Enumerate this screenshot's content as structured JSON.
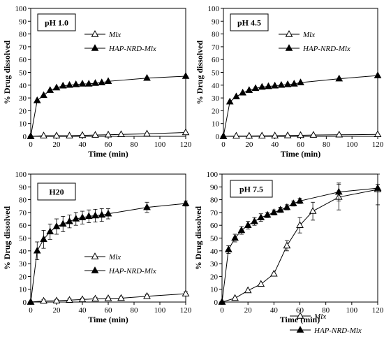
{
  "chart_data": [
    {
      "type": "line",
      "title": "pH 1.0",
      "xlabel": "Time (min)",
      "ylabel": "% Drug dissolved",
      "xlim": [
        0,
        120
      ],
      "ylim": [
        0,
        100
      ],
      "xticks": [
        "0",
        "20",
        "40",
        "60",
        "80",
        "100",
        "120"
      ],
      "yticks": [
        "0",
        "10",
        "20",
        "30",
        "40",
        "50",
        "60",
        "70",
        "80",
        "90",
        "100"
      ],
      "legend_position": "top-right",
      "series": [
        {
          "name": "Mlx",
          "marker": "open-triangle",
          "x": [
            0,
            10,
            20,
            30,
            40,
            50,
            60,
            70,
            90,
            120
          ],
          "y": [
            0,
            0.5,
            0.5,
            0.5,
            0.8,
            1,
            1.2,
            1.5,
            2,
            3
          ],
          "err": [
            0,
            0,
            0,
            0,
            0,
            0,
            0,
            0,
            0,
            0
          ]
        },
        {
          "name": "HAP-NRD-Mlx",
          "marker": "filled-triangle",
          "x": [
            0,
            5,
            10,
            15,
            20,
            25,
            30,
            35,
            40,
            45,
            50,
            55,
            60,
            90,
            120
          ],
          "y": [
            0,
            28,
            32,
            36,
            38,
            39.5,
            40,
            40.5,
            41,
            41,
            41.5,
            42,
            43,
            45.5,
            47
          ],
          "err": [
            0,
            0,
            0,
            0,
            0,
            0,
            0,
            0,
            0,
            0,
            0,
            0,
            0,
            0,
            0
          ]
        }
      ]
    },
    {
      "type": "line",
      "title": "pH 4.5",
      "xlabel": "Time (min)",
      "ylabel": "% Drug dissolved",
      "xlim": [
        0,
        120
      ],
      "ylim": [
        0,
        100
      ],
      "xticks": [
        "0",
        "20",
        "40",
        "60",
        "80",
        "100",
        "120"
      ],
      "yticks": [
        "0",
        "10",
        "20",
        "30",
        "40",
        "50",
        "60",
        "70",
        "80",
        "90",
        "100"
      ],
      "legend_position": "top-right",
      "series": [
        {
          "name": "Mlx",
          "marker": "open-triangle",
          "x": [
            0,
            10,
            20,
            30,
            40,
            50,
            60,
            70,
            90,
            120
          ],
          "y": [
            0,
            0.3,
            0.3,
            0.4,
            0.5,
            0.6,
            0.8,
            1,
            1.2,
            1.5
          ],
          "err": [
            0,
            0,
            0,
            0,
            0,
            0,
            0,
            0,
            0,
            0
          ]
        },
        {
          "name": "HAP-NRD-Mlx",
          "marker": "filled-triangle",
          "x": [
            0,
            5,
            10,
            15,
            20,
            25,
            30,
            35,
            40,
            45,
            50,
            55,
            60,
            90,
            120
          ],
          "y": [
            0,
            27,
            31,
            34,
            36,
            37.5,
            38.5,
            39,
            39.5,
            40,
            40.5,
            41,
            42,
            45,
            47.5
          ],
          "err": [
            0,
            0,
            0,
            0,
            0,
            0,
            0,
            0,
            0,
            0,
            0,
            0,
            0,
            0,
            0
          ]
        }
      ]
    },
    {
      "type": "line",
      "title": "H20",
      "xlabel": "Time (min)",
      "ylabel": "% Drug dissolved",
      "xlim": [
        0,
        120
      ],
      "ylim": [
        0,
        100
      ],
      "xticks": [
        "0",
        "20",
        "40",
        "60",
        "80",
        "100",
        "120"
      ],
      "yticks": [
        "0",
        "10",
        "20",
        "30",
        "40",
        "50",
        "60",
        "70",
        "80",
        "90",
        "100"
      ],
      "legend_position": "bottom-right",
      "series": [
        {
          "name": "Mlx",
          "marker": "open-triangle",
          "x": [
            0,
            10,
            20,
            30,
            40,
            50,
            60,
            70,
            90,
            120
          ],
          "y": [
            0,
            0.8,
            1,
            1.5,
            2,
            2.5,
            2.8,
            3,
            4.5,
            6.5
          ],
          "err": [
            0,
            1,
            1,
            1,
            1,
            1,
            1,
            1,
            1.5,
            1.5
          ]
        },
        {
          "name": "HAP-NRD-Mlx",
          "marker": "filled-triangle",
          "x": [
            0,
            5,
            10,
            15,
            20,
            25,
            30,
            35,
            40,
            45,
            50,
            55,
            60,
            90,
            120
          ],
          "y": [
            0,
            40,
            49,
            55,
            59,
            61,
            63,
            65,
            66,
            67,
            67.5,
            68,
            69,
            74,
            77
          ],
          "err": [
            0,
            7,
            7,
            6,
            6,
            6,
            5,
            5,
            5,
            5,
            5,
            5,
            4,
            4,
            2
          ]
        }
      ]
    },
    {
      "type": "line",
      "title": "pH 7.5",
      "xlabel": "Time (min)",
      "ylabel": "% Drug dissolved",
      "xlim": [
        0,
        120
      ],
      "ylim": [
        0,
        100
      ],
      "xticks": [
        "0",
        "20",
        "40",
        "60",
        "80",
        "100",
        "120"
      ],
      "yticks": [
        "0",
        "10",
        "20",
        "30",
        "40",
        "50",
        "60",
        "70",
        "80",
        "90",
        "100"
      ],
      "legend_position": "bottom-right",
      "series": [
        {
          "name": "Mlx",
          "marker": "open-triangle",
          "x": [
            0,
            10,
            20,
            30,
            40,
            50,
            60,
            70,
            90,
            120
          ],
          "y": [
            0,
            3,
            9,
            14,
            22,
            44,
            60,
            71,
            82,
            88
          ],
          "err": [
            0,
            0,
            0,
            0,
            0,
            4,
            6,
            7,
            10,
            12
          ]
        },
        {
          "name": "HAP-NRD-Mlx",
          "marker": "filled-triangle",
          "x": [
            0,
            5,
            10,
            15,
            20,
            25,
            30,
            35,
            40,
            45,
            50,
            55,
            60,
            90,
            120
          ],
          "y": [
            0,
            41,
            50,
            56,
            60,
            63,
            66,
            68,
            70,
            72,
            74,
            77,
            79,
            86,
            89
          ],
          "err": [
            0,
            3,
            3,
            3,
            3,
            3,
            3,
            2,
            2,
            2,
            2,
            2,
            2,
            7,
            3
          ]
        }
      ]
    }
  ]
}
